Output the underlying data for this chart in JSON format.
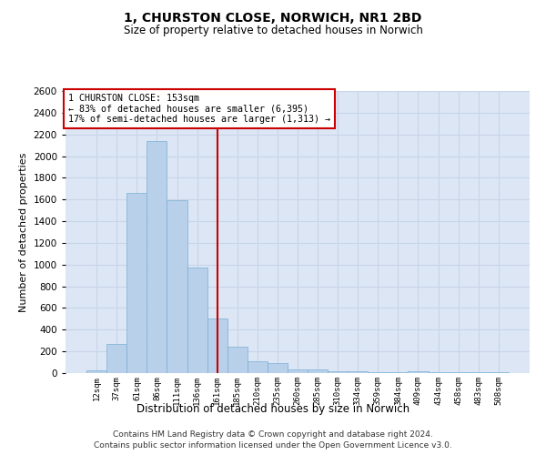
{
  "title": "1, CHURSTON CLOSE, NORWICH, NR1 2BD",
  "subtitle": "Size of property relative to detached houses in Norwich",
  "xlabel": "Distribution of detached houses by size in Norwich",
  "ylabel": "Number of detached properties",
  "annotation_line1": "1 CHURSTON CLOSE: 153sqm",
  "annotation_line2": "← 83% of detached houses are smaller (6,395)",
  "annotation_line3": "17% of semi-detached houses are larger (1,313) →",
  "footer_line1": "Contains HM Land Registry data © Crown copyright and database right 2024.",
  "footer_line2": "Contains public sector information licensed under the Open Government Licence v3.0.",
  "categories": [
    "12sqm",
    "37sqm",
    "61sqm",
    "86sqm",
    "111sqm",
    "136sqm",
    "161sqm",
    "185sqm",
    "210sqm",
    "235sqm",
    "260sqm",
    "285sqm",
    "310sqm",
    "334sqm",
    "359sqm",
    "384sqm",
    "409sqm",
    "434sqm",
    "458sqm",
    "483sqm",
    "508sqm"
  ],
  "values": [
    25,
    270,
    1660,
    2140,
    1590,
    970,
    500,
    245,
    110,
    90,
    35,
    30,
    20,
    15,
    10,
    5,
    15,
    5,
    5,
    10,
    5
  ],
  "bar_color": "#b8d0ea",
  "bar_edge_color": "#7aafd4",
  "vline_color": "#cc0000",
  "annotation_box_edge": "#cc0000",
  "annotation_box_face": "#ffffff",
  "grid_color": "#c8d4e8",
  "background_color": "#dce6f5",
  "ylim": [
    0,
    2600
  ],
  "yticks": [
    0,
    200,
    400,
    600,
    800,
    1000,
    1200,
    1400,
    1600,
    1800,
    2000,
    2200,
    2400,
    2600
  ]
}
